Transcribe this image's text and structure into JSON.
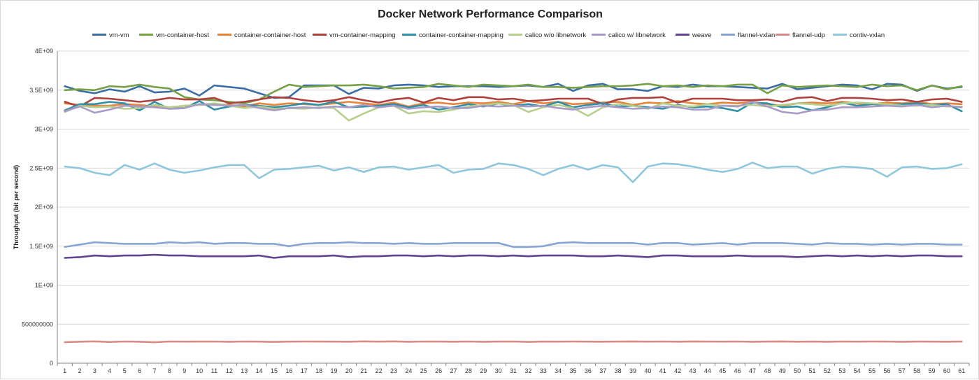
{
  "chart_data": {
    "type": "line",
    "title": "Docker Network Performance Comparison",
    "xlabel": "",
    "ylabel": "Throughput (bit per second)",
    "ylim": [
      0,
      4000000000
    ],
    "yticks": [
      0,
      500000000,
      1000000000,
      1500000000,
      2000000000,
      2500000000,
      3000000000,
      3500000000,
      4000000000
    ],
    "ytick_labels": [
      "0",
      "500000000",
      "1E+09",
      "1.5E+09",
      "2E+09",
      "2.5E+09",
      "3E+09",
      "3.5E+09",
      "4E+09"
    ],
    "x": [
      1,
      2,
      3,
      4,
      5,
      6,
      7,
      8,
      9,
      10,
      11,
      12,
      13,
      14,
      15,
      16,
      17,
      18,
      19,
      20,
      21,
      22,
      23,
      24,
      25,
      26,
      27,
      28,
      29,
      30,
      31,
      32,
      33,
      34,
      35,
      36,
      37,
      38,
      39,
      40,
      41,
      42,
      43,
      44,
      45,
      46,
      47,
      48,
      49,
      50,
      51,
      52,
      53,
      54,
      55,
      56,
      57,
      58,
      59,
      60,
      61
    ],
    "grid": true,
    "legend_position": "top",
    "series": [
      {
        "name": "vm-vm",
        "color": "#3a6ea5",
        "values": [
          3550000000.0,
          3490000000.0,
          3460000000.0,
          3510000000.0,
          3480000000.0,
          3550000000.0,
          3470000000.0,
          3480000000.0,
          3520000000.0,
          3430000000.0,
          3560000000.0,
          3540000000.0,
          3520000000.0,
          3460000000.0,
          3400000000.0,
          3410000000.0,
          3560000000.0,
          3560000000.0,
          3560000000.0,
          3450000000.0,
          3530000000.0,
          3520000000.0,
          3560000000.0,
          3570000000.0,
          3560000000.0,
          3540000000.0,
          3550000000.0,
          3550000000.0,
          3550000000.0,
          3540000000.0,
          3550000000.0,
          3560000000.0,
          3540000000.0,
          3580000000.0,
          3490000000.0,
          3560000000.0,
          3580000000.0,
          3510000000.0,
          3510000000.0,
          3490000000.0,
          3550000000.0,
          3540000000.0,
          3570000000.0,
          3550000000.0,
          3550000000.0,
          3540000000.0,
          3530000000.0,
          3520000000.0,
          3580000000.0,
          3510000000.0,
          3530000000.0,
          3550000000.0,
          3570000000.0,
          3560000000.0,
          3510000000.0,
          3580000000.0,
          3570000000.0,
          3490000000.0,
          3560000000.0,
          3520000000.0,
          3540000000.0
        ]
      },
      {
        "name": "vm-container-host",
        "color": "#77a044",
        "values": [
          3500000000.0,
          3510000000.0,
          3500000000.0,
          3550000000.0,
          3540000000.0,
          3570000000.0,
          3540000000.0,
          3520000000.0,
          3410000000.0,
          3380000000.0,
          3370000000.0,
          3350000000.0,
          3330000000.0,
          3380000000.0,
          3480000000.0,
          3570000000.0,
          3540000000.0,
          3550000000.0,
          3560000000.0,
          3560000000.0,
          3570000000.0,
          3550000000.0,
          3520000000.0,
          3530000000.0,
          3540000000.0,
          3580000000.0,
          3560000000.0,
          3540000000.0,
          3570000000.0,
          3560000000.0,
          3550000000.0,
          3570000000.0,
          3540000000.0,
          3540000000.0,
          3530000000.0,
          3540000000.0,
          3550000000.0,
          3550000000.0,
          3560000000.0,
          3580000000.0,
          3550000000.0,
          3560000000.0,
          3540000000.0,
          3560000000.0,
          3550000000.0,
          3570000000.0,
          3570000000.0,
          3460000000.0,
          3560000000.0,
          3540000000.0,
          3550000000.0,
          3560000000.0,
          3550000000.0,
          3540000000.0,
          3570000000.0,
          3550000000.0,
          3560000000.0,
          3500000000.0,
          3560000000.0,
          3510000000.0,
          3550000000.0
        ]
      },
      {
        "name": "container-container-host",
        "color": "#e8843a",
        "values": [
          3330000000.0,
          3310000000.0,
          3300000000.0,
          3300000000.0,
          3320000000.0,
          3310000000.0,
          3290000000.0,
          3270000000.0,
          3300000000.0,
          3310000000.0,
          3320000000.0,
          3310000000.0,
          3290000000.0,
          3330000000.0,
          3310000000.0,
          3330000000.0,
          3320000000.0,
          3310000000.0,
          3330000000.0,
          3350000000.0,
          3330000000.0,
          3310000000.0,
          3340000000.0,
          3290000000.0,
          3330000000.0,
          3340000000.0,
          3320000000.0,
          3340000000.0,
          3330000000.0,
          3350000000.0,
          3320000000.0,
          3360000000.0,
          3330000000.0,
          3350000000.0,
          3320000000.0,
          3330000000.0,
          3340000000.0,
          3350000000.0,
          3310000000.0,
          3340000000.0,
          3330000000.0,
          3360000000.0,
          3330000000.0,
          3320000000.0,
          3340000000.0,
          3330000000.0,
          3350000000.0,
          3320000000.0,
          3300000000.0,
          3330000000.0,
          3340000000.0,
          3330000000.0,
          3350000000.0,
          3330000000.0,
          3320000000.0,
          3340000000.0,
          3330000000.0,
          3350000000.0,
          3320000000.0,
          3330000000.0,
          3320000000.0
        ]
      },
      {
        "name": "vm-container-mapping",
        "color": "#b0403c",
        "values": [
          3350000000.0,
          3290000000.0,
          3400000000.0,
          3390000000.0,
          3370000000.0,
          3350000000.0,
          3370000000.0,
          3400000000.0,
          3380000000.0,
          3380000000.0,
          3400000000.0,
          3330000000.0,
          3350000000.0,
          3380000000.0,
          3410000000.0,
          3400000000.0,
          3370000000.0,
          3350000000.0,
          3370000000.0,
          3410000000.0,
          3370000000.0,
          3340000000.0,
          3380000000.0,
          3400000000.0,
          3340000000.0,
          3400000000.0,
          3370000000.0,
          3410000000.0,
          3410000000.0,
          3380000000.0,
          3390000000.0,
          3360000000.0,
          3370000000.0,
          3390000000.0,
          3390000000.0,
          3390000000.0,
          3320000000.0,
          3380000000.0,
          3400000000.0,
          3400000000.0,
          3410000000.0,
          3340000000.0,
          3390000000.0,
          3390000000.0,
          3390000000.0,
          3370000000.0,
          3370000000.0,
          3380000000.0,
          3350000000.0,
          3400000000.0,
          3410000000.0,
          3360000000.0,
          3400000000.0,
          3400000000.0,
          3390000000.0,
          3370000000.0,
          3380000000.0,
          3350000000.0,
          3380000000.0,
          3390000000.0,
          3350000000.0
        ]
      },
      {
        "name": "container-container-mapping",
        "color": "#2f8fa7",
        "values": [
          3240000000.0,
          3320000000.0,
          3320000000.0,
          3350000000.0,
          3330000000.0,
          3240000000.0,
          3350000000.0,
          3260000000.0,
          3270000000.0,
          3360000000.0,
          3250000000.0,
          3290000000.0,
          3310000000.0,
          3300000000.0,
          3280000000.0,
          3300000000.0,
          3330000000.0,
          3310000000.0,
          3350000000.0,
          3280000000.0,
          3290000000.0,
          3300000000.0,
          3320000000.0,
          3280000000.0,
          3310000000.0,
          3250000000.0,
          3280000000.0,
          3320000000.0,
          3290000000.0,
          3330000000.0,
          3300000000.0,
          3320000000.0,
          3290000000.0,
          3350000000.0,
          3280000000.0,
          3310000000.0,
          3330000000.0,
          3290000000.0,
          3300000000.0,
          3280000000.0,
          3260000000.0,
          3310000000.0,
          3280000000.0,
          3290000000.0,
          3270000000.0,
          3230000000.0,
          3340000000.0,
          3330000000.0,
          3280000000.0,
          3290000000.0,
          3240000000.0,
          3280000000.0,
          3340000000.0,
          3300000000.0,
          3320000000.0,
          3310000000.0,
          3320000000.0,
          3330000000.0,
          3310000000.0,
          3320000000.0,
          3230000000.0
        ]
      },
      {
        "name": "calico w/o libnetwork",
        "color": "#b6cf8c",
        "values": [
          3220000000.0,
          3300000000.0,
          3280000000.0,
          3290000000.0,
          3260000000.0,
          3270000000.0,
          3310000000.0,
          3280000000.0,
          3300000000.0,
          3310000000.0,
          3330000000.0,
          3300000000.0,
          3270000000.0,
          3290000000.0,
          3260000000.0,
          3270000000.0,
          3260000000.0,
          3280000000.0,
          3270000000.0,
          3110000000.0,
          3200000000.0,
          3280000000.0,
          3300000000.0,
          3200000000.0,
          3230000000.0,
          3220000000.0,
          3250000000.0,
          3290000000.0,
          3310000000.0,
          3330000000.0,
          3310000000.0,
          3220000000.0,
          3280000000.0,
          3310000000.0,
          3270000000.0,
          3170000000.0,
          3280000000.0,
          3320000000.0,
          3300000000.0,
          3260000000.0,
          3330000000.0,
          3300000000.0,
          3290000000.0,
          3320000000.0,
          3300000000.0,
          3300000000.0,
          3310000000.0,
          3290000000.0,
          3310000000.0,
          3330000000.0,
          3320000000.0,
          3300000000.0,
          3330000000.0,
          3340000000.0,
          3330000000.0,
          3320000000.0,
          3300000000.0,
          3300000000.0,
          3310000000.0,
          3290000000.0,
          3290000000.0
        ]
      },
      {
        "name": "calico w/ libnetwork",
        "color": "#a89bc7",
        "values": [
          3230000000.0,
          3290000000.0,
          3210000000.0,
          3250000000.0,
          3300000000.0,
          3290000000.0,
          3280000000.0,
          3260000000.0,
          3270000000.0,
          3320000000.0,
          3310000000.0,
          3300000000.0,
          3310000000.0,
          3270000000.0,
          3240000000.0,
          3270000000.0,
          3280000000.0,
          3270000000.0,
          3290000000.0,
          3280000000.0,
          3310000000.0,
          3280000000.0,
          3300000000.0,
          3260000000.0,
          3280000000.0,
          3290000000.0,
          3270000000.0,
          3270000000.0,
          3300000000.0,
          3290000000.0,
          3300000000.0,
          3290000000.0,
          3300000000.0,
          3270000000.0,
          3250000000.0,
          3280000000.0,
          3300000000.0,
          3280000000.0,
          3260000000.0,
          3270000000.0,
          3290000000.0,
          3280000000.0,
          3250000000.0,
          3250000000.0,
          3300000000.0,
          3290000000.0,
          3350000000.0,
          3290000000.0,
          3220000000.0,
          3200000000.0,
          3240000000.0,
          3250000000.0,
          3280000000.0,
          3280000000.0,
          3290000000.0,
          3300000000.0,
          3290000000.0,
          3310000000.0,
          3280000000.0,
          3300000000.0,
          3280000000.0
        ]
      },
      {
        "name": "weave",
        "color": "#60448f",
        "values": [
          1350000000.0,
          1360000000.0,
          1380000000.0,
          1370000000.0,
          1380000000.0,
          1380000000.0,
          1390000000.0,
          1380000000.0,
          1380000000.0,
          1370000000.0,
          1370000000.0,
          1370000000.0,
          1370000000.0,
          1380000000.0,
          1350000000.0,
          1370000000.0,
          1370000000.0,
          1370000000.0,
          1380000000.0,
          1360000000.0,
          1370000000.0,
          1370000000.0,
          1380000000.0,
          1380000000.0,
          1370000000.0,
          1380000000.0,
          1370000000.0,
          1380000000.0,
          1380000000.0,
          1370000000.0,
          1380000000.0,
          1370000000.0,
          1380000000.0,
          1380000000.0,
          1380000000.0,
          1370000000.0,
          1370000000.0,
          1380000000.0,
          1370000000.0,
          1360000000.0,
          1380000000.0,
          1380000000.0,
          1370000000.0,
          1370000000.0,
          1370000000.0,
          1380000000.0,
          1370000000.0,
          1370000000.0,
          1370000000.0,
          1360000000.0,
          1370000000.0,
          1380000000.0,
          1370000000.0,
          1380000000.0,
          1370000000.0,
          1380000000.0,
          1370000000.0,
          1380000000.0,
          1380000000.0,
          1370000000.0,
          1370000000.0
        ]
      },
      {
        "name": "flannel-vxlan",
        "color": "#88a5d2",
        "values": [
          1490000000.0,
          1520000000.0,
          1550000000.0,
          1540000000.0,
          1530000000.0,
          1530000000.0,
          1530000000.0,
          1550000000.0,
          1540000000.0,
          1550000000.0,
          1530000000.0,
          1540000000.0,
          1540000000.0,
          1530000000.0,
          1530000000.0,
          1500000000.0,
          1530000000.0,
          1540000000.0,
          1540000000.0,
          1550000000.0,
          1540000000.0,
          1540000000.0,
          1530000000.0,
          1540000000.0,
          1530000000.0,
          1530000000.0,
          1540000000.0,
          1540000000.0,
          1540000000.0,
          1540000000.0,
          1490000000.0,
          1490000000.0,
          1500000000.0,
          1540000000.0,
          1550000000.0,
          1540000000.0,
          1540000000.0,
          1540000000.0,
          1540000000.0,
          1520000000.0,
          1540000000.0,
          1540000000.0,
          1520000000.0,
          1530000000.0,
          1540000000.0,
          1520000000.0,
          1540000000.0,
          1540000000.0,
          1540000000.0,
          1530000000.0,
          1520000000.0,
          1540000000.0,
          1530000000.0,
          1530000000.0,
          1520000000.0,
          1530000000.0,
          1520000000.0,
          1530000000.0,
          1530000000.0,
          1520000000.0,
          1520000000.0
        ]
      },
      {
        "name": "flannel-udp",
        "color": "#d98b86",
        "values": [
          270000000.0,
          275000000.0,
          280000000.0,
          272000000.0,
          278000000.0,
          275000000.0,
          268000000.0,
          278000000.0,
          276000000.0,
          277000000.0,
          278000000.0,
          274000000.0,
          278000000.0,
          276000000.0,
          273000000.0,
          276000000.0,
          278000000.0,
          277000000.0,
          276000000.0,
          275000000.0,
          280000000.0,
          276000000.0,
          280000000.0,
          274000000.0,
          278000000.0,
          277000000.0,
          275000000.0,
          278000000.0,
          274000000.0,
          277000000.0,
          278000000.0,
          273000000.0,
          277000000.0,
          276000000.0,
          278000000.0,
          276000000.0,
          275000000.0,
          277000000.0,
          279000000.0,
          276000000.0,
          278000000.0,
          275000000.0,
          279000000.0,
          277000000.0,
          276000000.0,
          278000000.0,
          274000000.0,
          277000000.0,
          279000000.0,
          275000000.0,
          277000000.0,
          274000000.0,
          278000000.0,
          276000000.0,
          278000000.0,
          277000000.0,
          274000000.0,
          277000000.0,
          276000000.0,
          275000000.0,
          277000000.0
        ]
      },
      {
        "name": "contiv-vxlan",
        "color": "#8fc8dc",
        "values": [
          2520000000.0,
          2500000000.0,
          2440000000.0,
          2410000000.0,
          2540000000.0,
          2480000000.0,
          2560000000.0,
          2480000000.0,
          2440000000.0,
          2470000000.0,
          2510000000.0,
          2540000000.0,
          2540000000.0,
          2370000000.0,
          2480000000.0,
          2490000000.0,
          2510000000.0,
          2530000000.0,
          2470000000.0,
          2510000000.0,
          2450000000.0,
          2510000000.0,
          2520000000.0,
          2480000000.0,
          2510000000.0,
          2540000000.0,
          2440000000.0,
          2480000000.0,
          2490000000.0,
          2560000000.0,
          2540000000.0,
          2490000000.0,
          2410000000.0,
          2490000000.0,
          2540000000.0,
          2480000000.0,
          2540000000.0,
          2510000000.0,
          2320000000.0,
          2520000000.0,
          2560000000.0,
          2550000000.0,
          2520000000.0,
          2480000000.0,
          2450000000.0,
          2490000000.0,
          2570000000.0,
          2500000000.0,
          2520000000.0,
          2520000000.0,
          2430000000.0,
          2490000000.0,
          2520000000.0,
          2510000000.0,
          2490000000.0,
          2390000000.0,
          2510000000.0,
          2520000000.0,
          2490000000.0,
          2500000000.0,
          2550000000.0
        ]
      }
    ]
  }
}
